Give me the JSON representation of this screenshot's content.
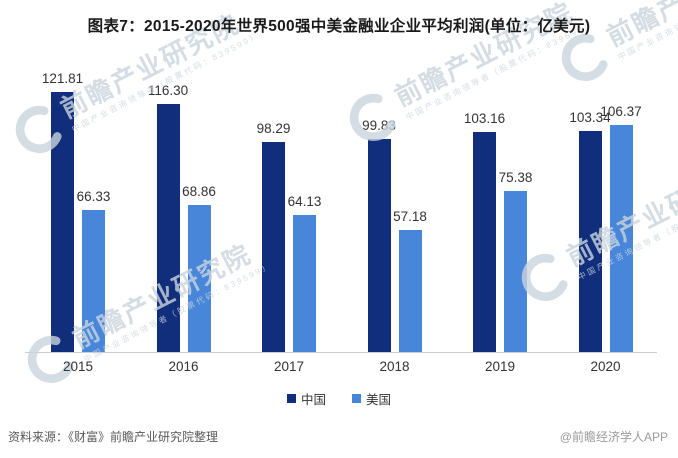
{
  "title": "图表7：2015-2020年世界500强中美金融业企业平均利润(单位：亿美元)",
  "chart_data": {
    "type": "bar",
    "categories": [
      "2015",
      "2016",
      "2017",
      "2018",
      "2019",
      "2020"
    ],
    "series": [
      {
        "name": "中国",
        "color": "#112e7d",
        "values": [
          121.81,
          116.3,
          98.29,
          99.83,
          103.16,
          103.34
        ]
      },
      {
        "name": "美国",
        "color": "#4886da",
        "values": [
          66.33,
          68.86,
          64.13,
          57.18,
          75.38,
          106.37
        ]
      }
    ],
    "title": "图表7：2015-2020年世界500强中美金融业企业平均利润(单位：亿美元)",
    "xlabel": "",
    "ylabel": "",
    "unit": "亿美元",
    "ylim": [
      0,
      130
    ],
    "grid": false,
    "legend_position": "bottom",
    "value_labels": true,
    "value_label_format": "2dp"
  },
  "legend": {
    "items": [
      "中国",
      "美国"
    ]
  },
  "footer": {
    "source": "资料来源：《财富》前瞻产业研究院整理",
    "credit": "@前瞻经济学人APP"
  },
  "watermark": {
    "brand": "前瞻产业研究院",
    "tagline": "中国产业咨询领导者（股票代码：839599）"
  },
  "colors": {
    "china_bar": "#112e7d",
    "usa_bar": "#4886da",
    "axis_line": "#cccccc",
    "label_text": "#333333",
    "watermark": "#cbd4dd"
  }
}
